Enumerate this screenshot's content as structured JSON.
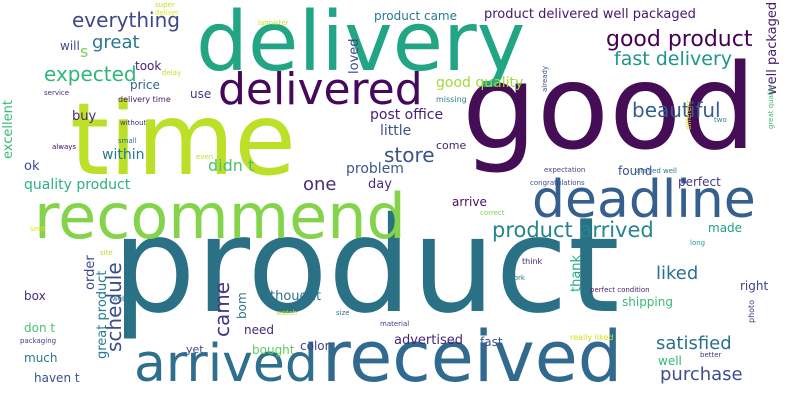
{
  "words": [
    {
      "text": "product",
      "color": "#2a7185"
    },
    {
      "text": "good",
      "color": "#440d56"
    },
    {
      "text": "time",
      "color": "#bcdf27"
    },
    {
      "text": "delivery",
      "color": "#21a585"
    },
    {
      "text": "recommend",
      "color": "#84d44b"
    },
    {
      "text": "received",
      "color": "#306a8e"
    },
    {
      "text": "arrived",
      "color": "#2e6f8e"
    },
    {
      "text": "deadline",
      "color": "#355f8d"
    },
    {
      "text": "delivered",
      "color": "#46085c"
    },
    {
      "text": "good product",
      "color": "#440154"
    },
    {
      "text": "product arrived",
      "color": "#25848e"
    },
    {
      "text": "fast delivery",
      "color": "#1f958b"
    },
    {
      "text": "everything",
      "color": "#3f4788"
    },
    {
      "text": "expected",
      "color": "#31b57b"
    },
    {
      "text": "great",
      "color": "#29798e"
    },
    {
      "text": "beautiful",
      "color": "#355e8d"
    },
    {
      "text": "store",
      "color": "#3b528b"
    },
    {
      "text": "liked",
      "color": "#2c718e"
    },
    {
      "text": "satisfied",
      "color": "#2d708e"
    },
    {
      "text": "purchase",
      "color": "#3d4e8a"
    },
    {
      "text": "came",
      "color": "#463480"
    },
    {
      "text": "one",
      "color": "#472d7b"
    },
    {
      "text": "didn t",
      "color": "#4ac16d"
    },
    {
      "text": "schedule",
      "color": "#3c4f8a"
    },
    {
      "text": "good quality",
      "color": "#a2da37"
    },
    {
      "text": "post office",
      "color": "#482374"
    },
    {
      "text": "product delivered well packaged",
      "color": "#481769"
    },
    {
      "text": "product came",
      "color": "#2a788e"
    },
    {
      "text": "quality product",
      "color": "#2db27d"
    },
    {
      "text": "well packaged",
      "color": "#481a6c"
    },
    {
      "text": "problem",
      "color": "#38588c"
    },
    {
      "text": "little",
      "color": "#3a538b"
    },
    {
      "text": "within",
      "color": "#2a778e"
    },
    {
      "text": "loved",
      "color": "#3e4989"
    },
    {
      "text": "took",
      "color": "#482576"
    },
    {
      "text": "price",
      "color": "#33638d"
    },
    {
      "text": "buy",
      "color": "#482979"
    },
    {
      "text": "use",
      "color": "#46337f"
    },
    {
      "text": "ok",
      "color": "#3e4a89"
    },
    {
      "text": "will",
      "color": "#3e4c8a"
    },
    {
      "text": "s",
      "color": "#7ad151"
    },
    {
      "text": "excellent",
      "color": "#39b977"
    },
    {
      "text": "day",
      "color": "#46307e"
    },
    {
      "text": "come",
      "color": "#481f70"
    },
    {
      "text": "arrive",
      "color": "#471063"
    },
    {
      "text": "found",
      "color": "#3b518b"
    },
    {
      "text": "perfect",
      "color": "#453882"
    },
    {
      "text": "made",
      "color": "#1fa187"
    },
    {
      "text": "right",
      "color": "#404588"
    },
    {
      "text": "thank",
      "color": "#25ab82"
    },
    {
      "text": "shipping",
      "color": "#38b977"
    },
    {
      "text": "thought",
      "color": "#2c738e"
    },
    {
      "text": "great product",
      "color": "#297b8e"
    },
    {
      "text": "order",
      "color": "#3e4989"
    },
    {
      "text": "box",
      "color": "#472c7a"
    },
    {
      "text": "bom",
      "color": "#2d718e"
    },
    {
      "text": "need",
      "color": "#482576"
    },
    {
      "text": "bought",
      "color": "#63cb5f"
    },
    {
      "text": "color",
      "color": "#433e85"
    },
    {
      "text": "advertised",
      "color": "#482475"
    },
    {
      "text": "fast",
      "color": "#39558c"
    },
    {
      "text": "yet",
      "color": "#3f4889"
    },
    {
      "text": "don t",
      "color": "#4ec36b"
    },
    {
      "text": "much",
      "color": "#2a768e"
    },
    {
      "text": "haven t",
      "color": "#3b518b"
    },
    {
      "text": "well",
      "color": "#35b779"
    },
    {
      "text": "lannister",
      "color": "#c8e020"
    },
    {
      "text": "super",
      "color": "#c2df23"
    },
    {
      "text": "deliver",
      "color": "#efe51c"
    },
    {
      "text": "delay",
      "color": "#c8e020"
    },
    {
      "text": "delivery time",
      "color": "#481769"
    },
    {
      "text": "service",
      "color": "#472e7c"
    },
    {
      "text": "without",
      "color": "#46337f"
    },
    {
      "text": "small",
      "color": "#2d718e"
    },
    {
      "text": "always",
      "color": "#46075a"
    },
    {
      "text": "even",
      "color": "#c2df23"
    },
    {
      "text": "missing",
      "color": "#26828e"
    },
    {
      "text": "already",
      "color": "#3b528b"
    },
    {
      "text": "expectation",
      "color": "#404688"
    },
    {
      "text": "congratulations",
      "color": "#3b528b"
    },
    {
      "text": "arrived well",
      "color": "#2a788e"
    },
    {
      "text": "correct",
      "color": "#7ad151"
    },
    {
      "text": "different",
      "color": "#d8e219"
    },
    {
      "text": "two",
      "color": "#24868e"
    },
    {
      "text": "great quality",
      "color": "#3bbb75"
    },
    {
      "text": "sent",
      "color": "#e5e419"
    },
    {
      "text": "site",
      "color": "#b0dd2f"
    },
    {
      "text": "long",
      "color": "#1f9e89"
    },
    {
      "text": "think",
      "color": "#482878"
    },
    {
      "text": "work",
      "color": "#2a788e"
    },
    {
      "text": "photo",
      "color": "#453781"
    },
    {
      "text": "perfect condition",
      "color": "#482374"
    },
    {
      "text": "website",
      "color": "#2a788e"
    },
    {
      "text": "watch",
      "color": "#bddf26"
    },
    {
      "text": "size",
      "color": "#2d708e"
    },
    {
      "text": "material",
      "color": "#433e85"
    },
    {
      "text": "packaging",
      "color": "#443a83"
    },
    {
      "text": "really liked",
      "color": "#d2e21b"
    },
    {
      "text": "better",
      "color": "#453882"
    }
  ]
}
